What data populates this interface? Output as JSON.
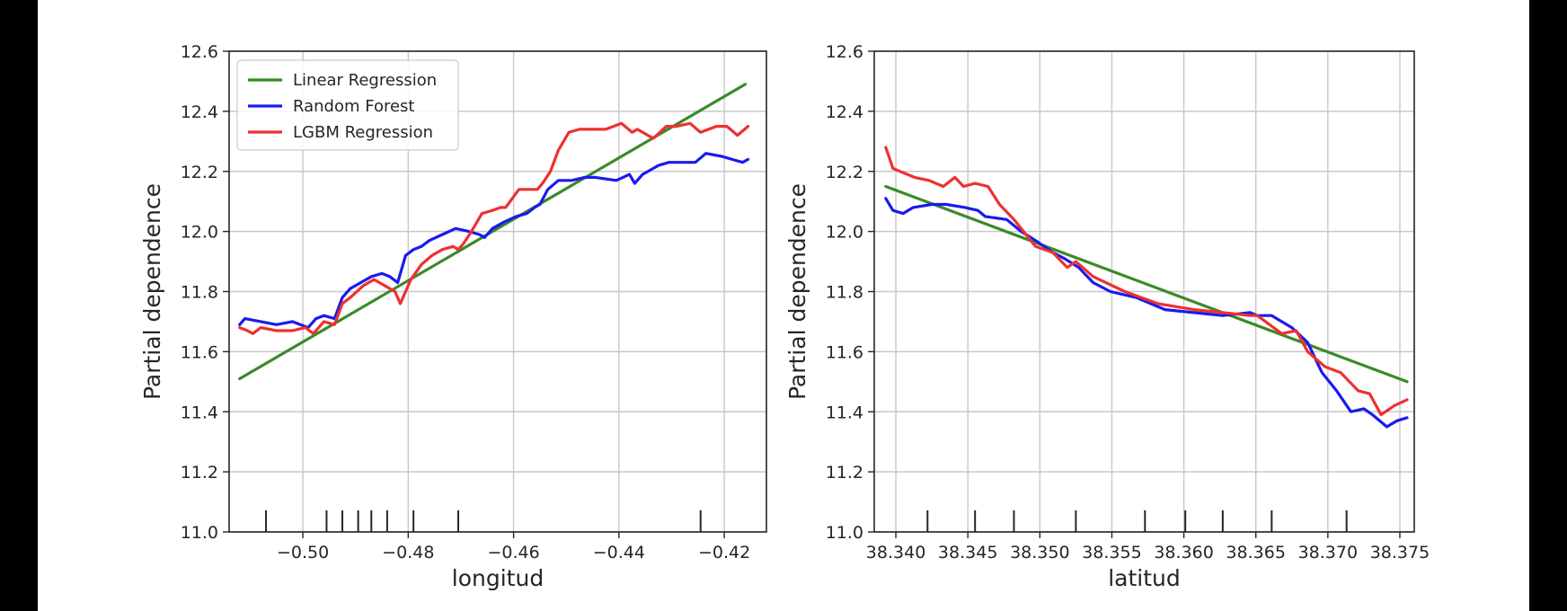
{
  "figure": {
    "background": "#ffffff",
    "side_bar_color": "#000000"
  },
  "colors": {
    "linear": "#3a8a2a",
    "forest": "#1a1aee",
    "lgbm": "#ee3030",
    "grid": "#c8c8c8",
    "axis": "#262626"
  },
  "legend": {
    "placement": "upper-left",
    "entries": [
      {
        "label": "Linear Regression",
        "color": "#3a8a2a"
      },
      {
        "label": "Random Forest",
        "color": "#1a1aee"
      },
      {
        "label": "LGBM Regression",
        "color": "#ee3030"
      }
    ]
  },
  "chart_data": [
    {
      "type": "line",
      "xlabel": "longitud",
      "ylabel": "Partial dependence",
      "xlim": [
        -0.514,
        -0.412
      ],
      "ylim": [
        11.0,
        12.6
      ],
      "xticks": [
        -0.5,
        -0.48,
        -0.46,
        -0.44,
        -0.42
      ],
      "xtick_labels": [
        "−0.50",
        "−0.48",
        "−0.46",
        "−0.44",
        "−0.42"
      ],
      "yticks": [
        11.0,
        11.2,
        11.4,
        11.6,
        11.8,
        12.0,
        12.2,
        12.4,
        12.6
      ],
      "ytick_labels": [
        "11.0",
        "11.2",
        "11.4",
        "11.6",
        "11.8",
        "12.0",
        "12.2",
        "12.4",
        "12.6"
      ],
      "grid": true,
      "rug": [
        -0.507,
        -0.4955,
        -0.4925,
        -0.4895,
        -0.487,
        -0.484,
        -0.479,
        -0.4705,
        -0.4245
      ],
      "series": [
        {
          "name": "Linear Regression",
          "color": "#3a8a2a",
          "x": [
            -0.512,
            -0.416
          ],
          "y": [
            11.51,
            12.49
          ]
        },
        {
          "name": "Random Forest",
          "color": "#1a1aee",
          "x": [
            -0.512,
            -0.511,
            -0.508,
            -0.505,
            -0.502,
            -0.499,
            -0.4975,
            -0.496,
            -0.494,
            -0.4925,
            -0.491,
            -0.489,
            -0.487,
            -0.485,
            -0.4835,
            -0.482,
            -0.4805,
            -0.479,
            -0.4775,
            -0.476,
            -0.4735,
            -0.471,
            -0.4685,
            -0.4665,
            -0.4655,
            -0.464,
            -0.462,
            -0.4595,
            -0.4575,
            -0.456,
            -0.455,
            -0.4535,
            -0.4515,
            -0.449,
            -0.4465,
            -0.4445,
            -0.4405,
            -0.438,
            -0.437,
            -0.4355,
            -0.4325,
            -0.4305,
            -0.4275,
            -0.4255,
            -0.4235,
            -0.4205,
            -0.4185,
            -0.4165,
            -0.4155
          ],
          "y": [
            11.69,
            11.71,
            11.7,
            11.69,
            11.7,
            11.68,
            11.71,
            11.72,
            11.71,
            11.78,
            11.81,
            11.83,
            11.85,
            11.86,
            11.85,
            11.83,
            11.92,
            11.94,
            11.95,
            11.97,
            11.99,
            12.01,
            12.0,
            11.99,
            11.98,
            12.01,
            12.03,
            12.05,
            12.06,
            12.08,
            12.09,
            12.14,
            12.17,
            12.17,
            12.18,
            12.18,
            12.17,
            12.19,
            12.16,
            12.19,
            12.22,
            12.23,
            12.23,
            12.23,
            12.26,
            12.25,
            12.24,
            12.23,
            12.24
          ]
        },
        {
          "name": "LGBM Regression",
          "color": "#ee3030",
          "x": [
            -0.512,
            -0.5105,
            -0.5095,
            -0.508,
            -0.505,
            -0.502,
            -0.4995,
            -0.498,
            -0.496,
            -0.494,
            -0.4925,
            -0.491,
            -0.4885,
            -0.4865,
            -0.4845,
            -0.4825,
            -0.4815,
            -0.4795,
            -0.4775,
            -0.4755,
            -0.4735,
            -0.4715,
            -0.4705,
            -0.4695,
            -0.468,
            -0.466,
            -0.464,
            -0.4625,
            -0.4615,
            -0.459,
            -0.4555,
            -0.4545,
            -0.453,
            -0.4515,
            -0.4495,
            -0.4475,
            -0.4455,
            -0.4425,
            -0.4395,
            -0.4375,
            -0.4365,
            -0.4335,
            -0.431,
            -0.429,
            -0.4265,
            -0.4245,
            -0.4215,
            -0.4195,
            -0.4175,
            -0.4155
          ],
          "y": [
            11.68,
            11.67,
            11.66,
            11.68,
            11.67,
            11.67,
            11.68,
            11.66,
            11.7,
            11.69,
            11.76,
            11.78,
            11.82,
            11.84,
            11.82,
            11.8,
            11.76,
            11.84,
            11.89,
            11.92,
            11.94,
            11.95,
            11.94,
            11.96,
            12.0,
            12.06,
            12.07,
            12.08,
            12.08,
            12.14,
            12.14,
            12.16,
            12.2,
            12.27,
            12.33,
            12.34,
            12.34,
            12.34,
            12.36,
            12.33,
            12.34,
            12.31,
            12.35,
            12.35,
            12.36,
            12.33,
            12.35,
            12.35,
            12.32,
            12.35
          ]
        }
      ]
    },
    {
      "type": "line",
      "xlabel": "latitud",
      "ylabel": "Partial dependence",
      "xlim": [
        38.3385,
        38.376
      ],
      "ylim": [
        11.0,
        12.6
      ],
      "xticks": [
        38.34,
        38.345,
        38.35,
        38.355,
        38.36,
        38.365,
        38.37,
        38.375
      ],
      "xtick_labels": [
        "38.340",
        "38.345",
        "38.350",
        "38.355",
        "38.360",
        "38.365",
        "38.370",
        "38.375"
      ],
      "yticks": [
        11.0,
        11.2,
        11.4,
        11.6,
        11.8,
        12.0,
        12.2,
        12.4,
        12.6
      ],
      "ytick_labels": [
        "11.0",
        "11.2",
        "11.4",
        "11.6",
        "11.8",
        "12.0",
        "12.2",
        "12.4",
        "12.6"
      ],
      "grid": true,
      "rug": [
        38.3422,
        38.3455,
        38.3482,
        38.3525,
        38.3573,
        38.3601,
        38.3627,
        38.3661,
        38.3713
      ],
      "series": [
        {
          "name": "Linear Regression",
          "color": "#3a8a2a",
          "x": [
            38.3393,
            38.3755
          ],
          "y": [
            12.15,
            11.5
          ]
        },
        {
          "name": "Random Forest",
          "color": "#1a1aee",
          "x": [
            38.3393,
            38.3398,
            38.3405,
            38.3412,
            38.3425,
            38.3435,
            38.3448,
            38.3457,
            38.3462,
            38.3477,
            38.3487,
            38.3497,
            38.3509,
            38.3517,
            38.3527,
            38.3537,
            38.3549,
            38.3567,
            38.3587,
            38.3607,
            38.3627,
            38.3646,
            38.3651,
            38.3661,
            38.3675,
            38.3686,
            38.3696,
            38.3706,
            38.3716,
            38.3725,
            38.3731,
            38.3741,
            38.3748,
            38.3755
          ],
          "y": [
            12.11,
            12.07,
            12.06,
            12.08,
            12.09,
            12.09,
            12.08,
            12.07,
            12.05,
            12.04,
            12.0,
            11.97,
            11.93,
            11.91,
            11.88,
            11.83,
            11.8,
            11.78,
            11.74,
            11.73,
            11.72,
            11.73,
            11.72,
            11.72,
            11.68,
            11.63,
            11.53,
            11.47,
            11.4,
            11.41,
            11.39,
            11.35,
            11.37,
            11.38
          ]
        },
        {
          "name": "LGBM Regression",
          "color": "#ee3030",
          "x": [
            38.3393,
            38.3398,
            38.3403,
            38.3413,
            38.3423,
            38.3433,
            38.3441,
            38.3447,
            38.3455,
            38.3464,
            38.3472,
            38.3482,
            38.3497,
            38.3509,
            38.3519,
            38.3525,
            38.3537,
            38.3559,
            38.3582,
            38.3607,
            38.3627,
            38.3646,
            38.3651,
            38.3668,
            38.3678,
            38.3686,
            38.3698,
            38.3709,
            38.3721,
            38.3729,
            38.3737,
            38.3746,
            38.3755
          ],
          "y": [
            12.28,
            12.21,
            12.2,
            12.18,
            12.17,
            12.15,
            12.18,
            12.15,
            12.16,
            12.15,
            12.09,
            12.04,
            11.95,
            11.93,
            11.88,
            11.9,
            11.85,
            11.8,
            11.76,
            11.74,
            11.73,
            11.72,
            11.72,
            11.66,
            11.67,
            11.6,
            11.55,
            11.53,
            11.47,
            11.46,
            11.39,
            11.42,
            11.44
          ]
        }
      ]
    }
  ]
}
